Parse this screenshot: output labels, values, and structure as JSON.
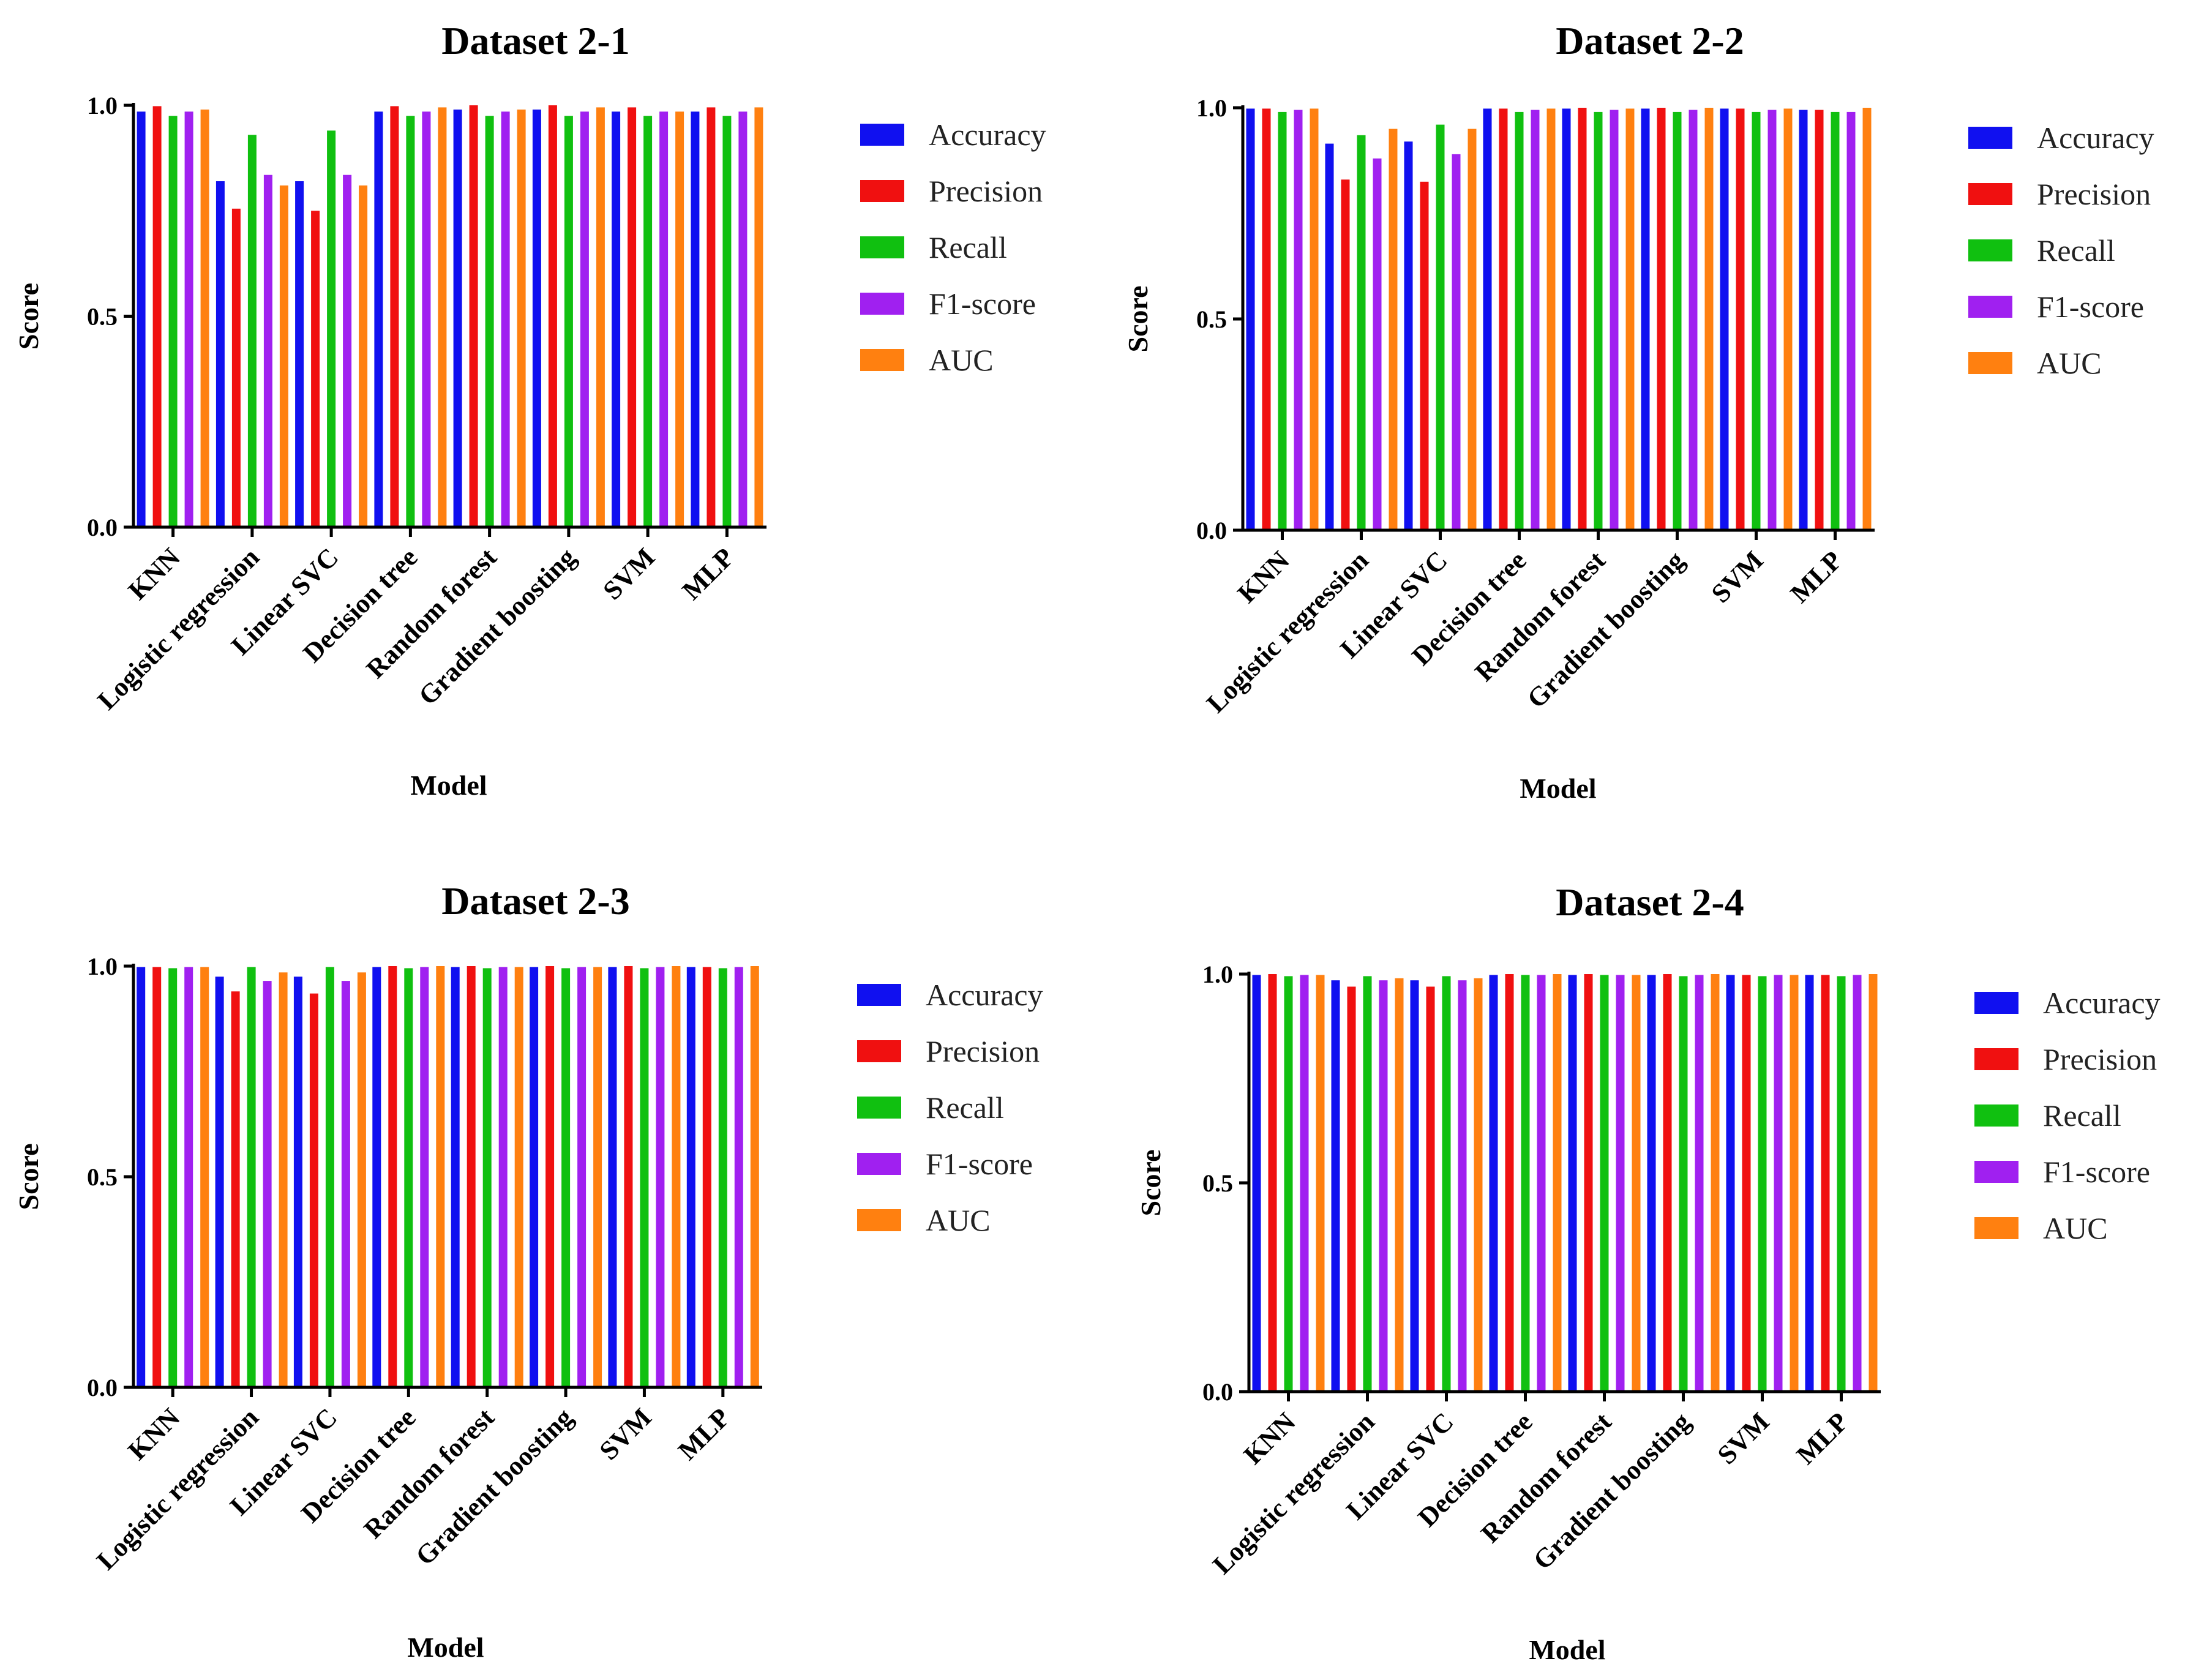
{
  "colors": {
    "Accuracy": "#1010F0",
    "Precision": "#F01010",
    "Recall": "#10C010",
    "F1-score": "#A020F0",
    "AUC": "#FF8010"
  },
  "chart_data": [
    {
      "type": "bar",
      "title": "Dataset 2-1",
      "xlabel": "Model",
      "ylabel": "Score",
      "ylim": [
        0,
        1
      ],
      "yticks": [
        "0.0",
        "0.5",
        "1.0"
      ],
      "legend_position": "right",
      "categories": [
        "KNN",
        "Logistic regression",
        "Linear SVC",
        "Decision tree",
        "Random forest",
        "Gradient boosting",
        "SVM",
        "MLP"
      ],
      "series": [
        {
          "name": "Accuracy",
          "values": [
            0.985,
            0.82,
            0.82,
            0.985,
            0.99,
            0.99,
            0.985,
            0.985
          ]
        },
        {
          "name": "Precision",
          "values": [
            0.998,
            0.755,
            0.75,
            0.998,
            1.0,
            1.0,
            0.995,
            0.995
          ]
        },
        {
          "name": "Recall",
          "values": [
            0.975,
            0.93,
            0.94,
            0.975,
            0.975,
            0.975,
            0.975,
            0.975
          ]
        },
        {
          "name": "F1-score",
          "values": [
            0.985,
            0.835,
            0.835,
            0.985,
            0.985,
            0.985,
            0.985,
            0.985
          ]
        },
        {
          "name": "AUC",
          "values": [
            0.99,
            0.81,
            0.81,
            0.995,
            0.99,
            0.995,
            0.985,
            0.995
          ]
        }
      ]
    },
    {
      "type": "bar",
      "title": "Dataset 2-2",
      "xlabel": "Model",
      "ylabel": "Score",
      "ylim": [
        0,
        1
      ],
      "yticks": [
        "0.0",
        "0.5",
        "1.0"
      ],
      "legend_position": "right",
      "categories": [
        "KNN",
        "Logistic regression",
        "Linear SVC",
        "Decision tree",
        "Random forest",
        "Gradient boosting",
        "SVM",
        "MLP"
      ],
      "series": [
        {
          "name": "Accuracy",
          "values": [
            0.998,
            0.915,
            0.92,
            0.998,
            0.998,
            0.998,
            0.998,
            0.995
          ]
        },
        {
          "name": "Precision",
          "values": [
            0.998,
            0.83,
            0.825,
            0.998,
            1.0,
            1.0,
            0.998,
            0.995
          ]
        },
        {
          "name": "Recall",
          "values": [
            0.99,
            0.935,
            0.96,
            0.99,
            0.99,
            0.99,
            0.99,
            0.99
          ]
        },
        {
          "name": "F1-score",
          "values": [
            0.995,
            0.88,
            0.89,
            0.995,
            0.995,
            0.995,
            0.995,
            0.99
          ]
        },
        {
          "name": "AUC",
          "values": [
            0.998,
            0.95,
            0.95,
            0.998,
            0.998,
            1.0,
            0.998,
            1.0
          ]
        }
      ]
    },
    {
      "type": "bar",
      "title": "Dataset 2-3",
      "xlabel": "Model",
      "ylabel": "Score",
      "ylim": [
        0,
        1
      ],
      "yticks": [
        "0.0",
        "0.5",
        "1.0"
      ],
      "legend_position": "right",
      "categories": [
        "KNN",
        "Logistic regression",
        "Linear SVC",
        "Decision tree",
        "Random forest",
        "Gradient boosting",
        "SVM",
        "MLP"
      ],
      "series": [
        {
          "name": "Accuracy",
          "values": [
            0.998,
            0.975,
            0.975,
            0.998,
            0.998,
            0.998,
            0.998,
            0.998
          ]
        },
        {
          "name": "Precision",
          "values": [
            0.998,
            0.94,
            0.935,
            1.0,
            1.0,
            1.0,
            1.0,
            0.998
          ]
        },
        {
          "name": "Recall",
          "values": [
            0.995,
            0.998,
            0.998,
            0.995,
            0.995,
            0.995,
            0.995,
            0.995
          ]
        },
        {
          "name": "F1-score",
          "values": [
            0.998,
            0.965,
            0.965,
            0.998,
            0.998,
            0.998,
            0.998,
            0.998
          ]
        },
        {
          "name": "AUC",
          "values": [
            0.998,
            0.985,
            0.985,
            1.0,
            0.998,
            0.998,
            1.0,
            1.0
          ]
        }
      ]
    },
    {
      "type": "bar",
      "title": "Dataset 2-4",
      "xlabel": "Model",
      "ylabel": "Score",
      "ylim": [
        0,
        1
      ],
      "yticks": [
        "0.0",
        "0.5",
        "1.0"
      ],
      "legend_position": "right",
      "categories": [
        "KNN",
        "Logistic regression",
        "Linear SVC",
        "Decision tree",
        "Random forest",
        "Gradient boosting",
        "SVM",
        "MLP"
      ],
      "series": [
        {
          "name": "Accuracy",
          "values": [
            0.998,
            0.985,
            0.985,
            0.998,
            0.998,
            0.998,
            0.998,
            0.998
          ]
        },
        {
          "name": "Precision",
          "values": [
            1.0,
            0.97,
            0.97,
            1.0,
            1.0,
            1.0,
            0.998,
            0.998
          ]
        },
        {
          "name": "Recall",
          "values": [
            0.995,
            0.995,
            0.995,
            0.998,
            0.998,
            0.995,
            0.995,
            0.995
          ]
        },
        {
          "name": "F1-score",
          "values": [
            0.998,
            0.985,
            0.985,
            0.998,
            0.998,
            0.998,
            0.998,
            0.998
          ]
        },
        {
          "name": "AUC",
          "values": [
            0.998,
            0.99,
            0.99,
            1.0,
            0.998,
            1.0,
            0.998,
            1.0
          ]
        }
      ]
    }
  ]
}
